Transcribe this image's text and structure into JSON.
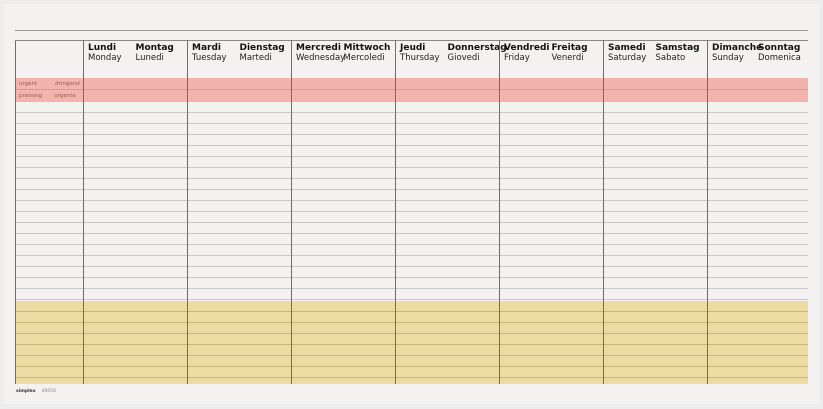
{
  "days": [
    {
      "fr": "Lundi",
      "de": "Montag",
      "en": "Monday",
      "it": "Lunedi"
    },
    {
      "fr": "Mardi",
      "de": "Dienstag",
      "en": "Tuesday",
      "it": "Martedi"
    },
    {
      "fr": "Mercredi",
      "de": "Mittwoch",
      "en": "Wednesday",
      "it": "Mercoledi"
    },
    {
      "fr": "Jeudi",
      "de": "Donnerstag",
      "en": "Thursday",
      "it": "Giovedi"
    },
    {
      "fr": "Vendredi",
      "de": "Freitag",
      "en": "Friday",
      "it": "Venerdi"
    },
    {
      "fr": "Samedi",
      "de": "Samstag",
      "en": "Saturday",
      "it": "Sabato"
    },
    {
      "fr": "Dimanche",
      "de": "Sonntag",
      "en": "Sunday",
      "it": "Domenica"
    }
  ],
  "priority": {
    "row1": [
      "urgent",
      "dringend"
    ],
    "row2": [
      "pressing",
      "urgente"
    ]
  },
  "brand": {
    "name": "simplex",
    "code": "40050"
  },
  "colors": {
    "urgent_band": "#f2b3ad",
    "bottom_band": "#ecdca3"
  }
}
